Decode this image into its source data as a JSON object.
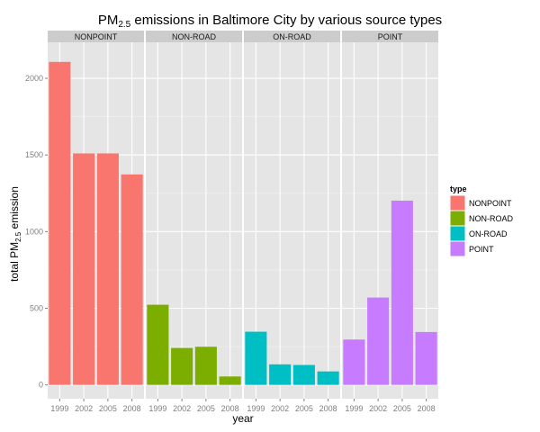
{
  "chart_data": {
    "type": "bar",
    "title": {
      "prefix": "PM",
      "subscript": "2.5",
      "suffix": " emissions in Baltimore City by various source types"
    },
    "xlabel": "year",
    "ylabel": {
      "prefix": "total PM",
      "subscript": "2.5",
      "suffix": " emission"
    },
    "categories": [
      "1999",
      "2002",
      "2005",
      "2008"
    ],
    "ylim": [
      -90,
      2235
    ],
    "y_ticks": [
      0,
      500,
      1000,
      1500,
      2000
    ],
    "grid": true,
    "legend_position": "right",
    "legend_title": "type",
    "series": [
      {
        "name": "NONPOINT",
        "color": "#F8766D",
        "values": [
          2107,
          1510,
          1510,
          1373
        ]
      },
      {
        "name": "NON-ROAD",
        "color": "#7CAE00",
        "values": [
          523,
          241,
          249,
          55
        ]
      },
      {
        "name": "ON-ROAD",
        "color": "#00BFC4",
        "values": [
          347,
          134,
          130,
          88
        ]
      },
      {
        "name": "POINT",
        "color": "#C77CFF",
        "values": [
          296,
          570,
          1202,
          345
        ]
      }
    ]
  }
}
